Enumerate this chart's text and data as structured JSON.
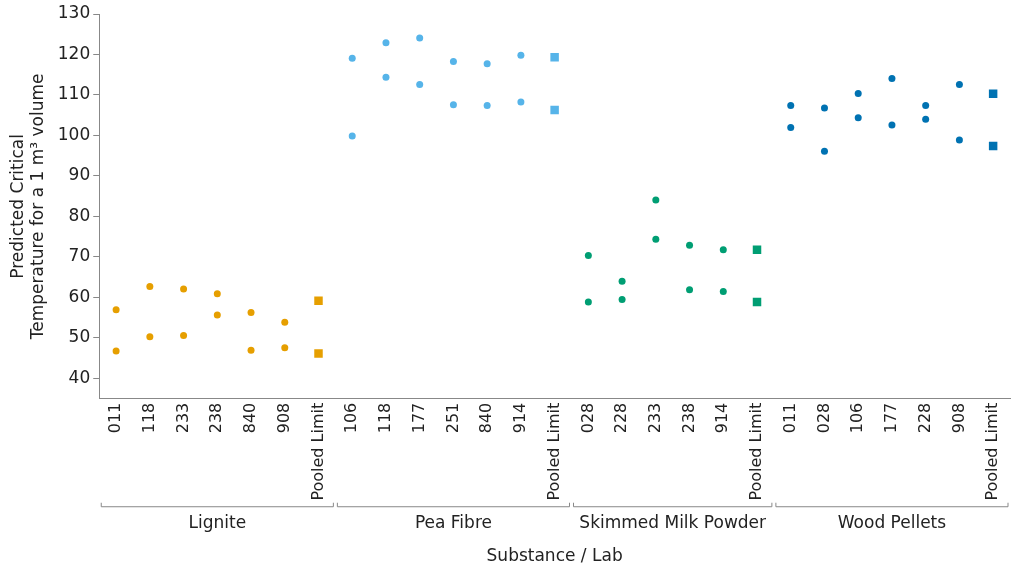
{
  "chart_data": {
    "type": "scatter",
    "ylabel": "Predicted Critical Temperature for a 1 m³ volume",
    "xlabel": "Substance / Lab",
    "categories": [
      "011",
      "118",
      "233",
      "238",
      "840",
      "908",
      "Pooled Limit",
      "106",
      "118",
      "177",
      "251",
      "840",
      "914",
      "Pooled Limit",
      "028",
      "228",
      "233",
      "238",
      "914",
      "Pooled Limit",
      "011",
      "028",
      "106",
      "177",
      "228",
      "908",
      "Pooled Limit"
    ],
    "series": [
      {
        "color": "#e69f00",
        "marker": "circle",
        "values": [
          57.0,
          62.7,
          62.1,
          60.9,
          56.3,
          53.9,
          null,
          null,
          null,
          null,
          null,
          null,
          null,
          null,
          null,
          null,
          null,
          null,
          null,
          null,
          null,
          null,
          null,
          null,
          null,
          null,
          null
        ]
      },
      {
        "color": "#e69f00",
        "marker": "circle",
        "values": [
          46.8,
          50.3,
          50.6,
          55.7,
          47.0,
          47.6,
          null,
          null,
          null,
          null,
          null,
          null,
          null,
          null,
          null,
          null,
          null,
          null,
          null,
          null,
          null,
          null,
          null,
          null,
          null,
          null,
          null
        ]
      },
      {
        "color": "#e69f00",
        "marker": "square",
        "values": [
          null,
          null,
          null,
          null,
          null,
          null,
          59.2,
          null,
          null,
          null,
          null,
          null,
          null,
          null,
          null,
          null,
          null,
          null,
          null,
          null,
          null,
          null,
          null,
          null,
          null,
          null,
          null
        ]
      },
      {
        "color": "#e69f00",
        "marker": "square",
        "values": [
          null,
          null,
          null,
          null,
          null,
          null,
          46.2,
          null,
          null,
          null,
          null,
          null,
          null,
          null,
          null,
          null,
          null,
          null,
          null,
          null,
          null,
          null,
          null,
          null,
          null,
          null,
          null
        ]
      },
      {
        "color": "#56b4e9",
        "marker": "circle",
        "values": [
          null,
          null,
          null,
          null,
          null,
          null,
          null,
          119.1,
          122.9,
          124.1,
          118.3,
          117.7,
          119.8,
          null,
          null,
          null,
          null,
          null,
          null,
          null,
          null,
          null,
          null,
          null,
          null,
          null,
          null
        ]
      },
      {
        "color": "#56b4e9",
        "marker": "circle",
        "values": [
          null,
          null,
          null,
          null,
          null,
          null,
          null,
          99.9,
          114.4,
          112.6,
          107.6,
          107.4,
          108.3,
          null,
          null,
          null,
          null,
          null,
          null,
          null,
          null,
          null,
          null,
          null,
          null,
          null,
          null
        ]
      },
      {
        "color": "#56b4e9",
        "marker": "square",
        "values": [
          null,
          null,
          null,
          null,
          null,
          null,
          null,
          null,
          null,
          null,
          null,
          null,
          null,
          119.3,
          null,
          null,
          null,
          null,
          null,
          null,
          null,
          null,
          null,
          null,
          null,
          null,
          null
        ]
      },
      {
        "color": "#56b4e9",
        "marker": "square",
        "values": [
          null,
          null,
          null,
          null,
          null,
          null,
          null,
          null,
          null,
          null,
          null,
          null,
          null,
          106.3,
          null,
          null,
          null,
          null,
          null,
          null,
          null,
          null,
          null,
          null,
          null,
          null,
          null
        ]
      },
      {
        "color": "#009e73",
        "marker": "circle",
        "values": [
          null,
          null,
          null,
          null,
          null,
          null,
          null,
          null,
          null,
          null,
          null,
          null,
          null,
          null,
          70.4,
          64.0,
          84.1,
          72.9,
          71.8,
          null,
          null,
          null,
          null,
          null,
          null,
          null,
          null
        ]
      },
      {
        "color": "#009e73",
        "marker": "circle",
        "values": [
          null,
          null,
          null,
          null,
          null,
          null,
          null,
          null,
          null,
          null,
          null,
          null,
          null,
          null,
          58.9,
          59.5,
          74.4,
          61.9,
          61.5,
          null,
          null,
          null,
          null,
          null,
          null,
          null,
          null
        ]
      },
      {
        "color": "#009e73",
        "marker": "square",
        "values": [
          null,
          null,
          null,
          null,
          null,
          null,
          null,
          null,
          null,
          null,
          null,
          null,
          null,
          null,
          null,
          null,
          null,
          null,
          null,
          71.8,
          null,
          null,
          null,
          null,
          null,
          null,
          null
        ]
      },
      {
        "color": "#009e73",
        "marker": "square",
        "values": [
          null,
          null,
          null,
          null,
          null,
          null,
          null,
          null,
          null,
          null,
          null,
          null,
          null,
          null,
          null,
          null,
          null,
          null,
          null,
          58.9,
          null,
          null,
          null,
          null,
          null,
          null,
          null
        ]
      },
      {
        "color": "#0072b2",
        "marker": "circle",
        "values": [
          null,
          null,
          null,
          null,
          null,
          null,
          null,
          null,
          null,
          null,
          null,
          null,
          null,
          null,
          null,
          null,
          null,
          null,
          null,
          null,
          107.4,
          106.8,
          110.4,
          114.1,
          107.4,
          112.6,
          null
        ]
      },
      {
        "color": "#0072b2",
        "marker": "circle",
        "values": [
          null,
          null,
          null,
          null,
          null,
          null,
          null,
          null,
          null,
          null,
          null,
          null,
          null,
          null,
          null,
          null,
          null,
          null,
          null,
          null,
          102.0,
          96.1,
          104.4,
          102.6,
          104.0,
          98.9,
          null
        ]
      },
      {
        "color": "#0072b2",
        "marker": "square",
        "values": [
          null,
          null,
          null,
          null,
          null,
          null,
          null,
          null,
          null,
          null,
          null,
          null,
          null,
          null,
          null,
          null,
          null,
          null,
          null,
          null,
          null,
          null,
          null,
          null,
          null,
          null,
          110.3
        ]
      },
      {
        "color": "#0072b2",
        "marker": "square",
        "values": [
          null,
          null,
          null,
          null,
          null,
          null,
          null,
          null,
          null,
          null,
          null,
          null,
          null,
          null,
          null,
          null,
          null,
          null,
          null,
          null,
          null,
          null,
          null,
          null,
          null,
          null,
          97.4
        ]
      }
    ],
    "ylim": [
      35,
      130
    ],
    "yticks": [
      40,
      50,
      60,
      70,
      80,
      90,
      100,
      110,
      120,
      130
    ],
    "grid": false,
    "legend": false,
    "annotations": [
      "Lignite",
      "Pea Fibre",
      "Skimmed Milk Powder",
      "Wood Pellets"
    ]
  }
}
